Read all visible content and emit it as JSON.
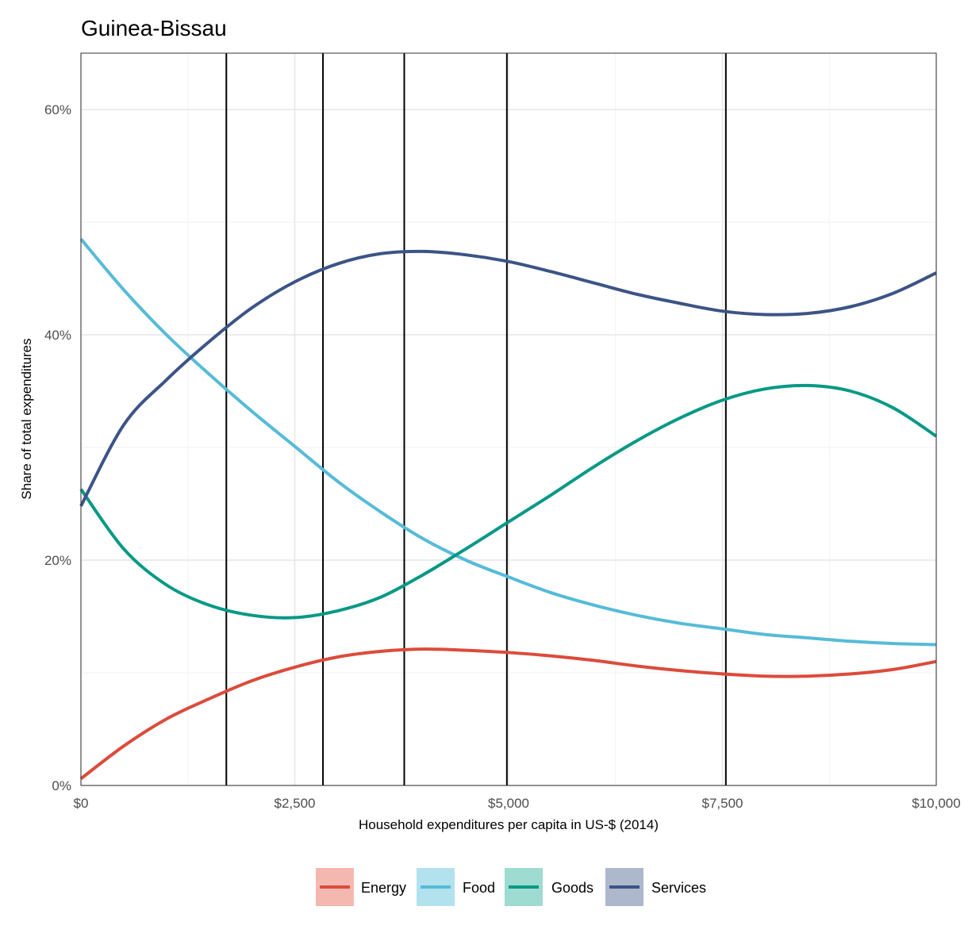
{
  "chart_data": {
    "type": "line",
    "title": "Guinea-Bissau",
    "xlabel": "Household expenditures per capita in US-$ (2014)",
    "ylabel": "Share of total expenditures",
    "xlim": [
      0,
      10000
    ],
    "ylim": [
      0,
      0.65
    ],
    "x_ticks": [
      0,
      2500,
      5000,
      7500,
      10000
    ],
    "x_tick_labels": [
      "$0",
      "$2,500",
      "$5,000",
      "$7,500",
      "$10,000"
    ],
    "y_ticks": [
      0,
      0.2,
      0.4,
      0.6
    ],
    "y_tick_labels": [
      "0%",
      "20%",
      "40%",
      "60%"
    ],
    "vertical_lines": [
      1700,
      2830,
      3780,
      4980,
      7540
    ],
    "grid": true,
    "legend_position": "bottom",
    "x": [
      0,
      500,
      1000,
      1500,
      2000,
      2500,
      3000,
      3500,
      4000,
      4500,
      5000,
      5500,
      6000,
      6500,
      7000,
      7500,
      8000,
      8500,
      9000,
      9500,
      10000
    ],
    "series": [
      {
        "name": "Energy",
        "color": "#dc4b3b",
        "legend_fill": "#f5b8b0",
        "values": [
          0.006,
          0.035,
          0.059,
          0.077,
          0.093,
          0.105,
          0.114,
          0.119,
          0.121,
          0.12,
          0.118,
          0.115,
          0.111,
          0.106,
          0.102,
          0.099,
          0.097,
          0.097,
          0.099,
          0.103,
          0.11
        ]
      },
      {
        "name": "Food",
        "color": "#56bbd8",
        "legend_fill": "#b3e2ef",
        "values": [
          0.485,
          0.44,
          0.4,
          0.365,
          0.332,
          0.301,
          0.27,
          0.243,
          0.219,
          0.2,
          0.185,
          0.171,
          0.16,
          0.151,
          0.144,
          0.139,
          0.134,
          0.131,
          0.128,
          0.126,
          0.125
        ]
      },
      {
        "name": "Goods",
        "color": "#079985",
        "legend_fill": "#9edbd0",
        "values": [
          0.263,
          0.21,
          0.178,
          0.16,
          0.151,
          0.149,
          0.155,
          0.167,
          0.187,
          0.21,
          0.234,
          0.258,
          0.283,
          0.306,
          0.326,
          0.342,
          0.352,
          0.355,
          0.35,
          0.335,
          0.31
        ]
      },
      {
        "name": "Services",
        "color": "#3c5486",
        "legend_fill": "#aeb8cc",
        "values": [
          0.248,
          0.32,
          0.36,
          0.394,
          0.424,
          0.447,
          0.463,
          0.472,
          0.474,
          0.471,
          0.465,
          0.456,
          0.446,
          0.436,
          0.428,
          0.421,
          0.418,
          0.419,
          0.425,
          0.437,
          0.455
        ]
      }
    ]
  }
}
